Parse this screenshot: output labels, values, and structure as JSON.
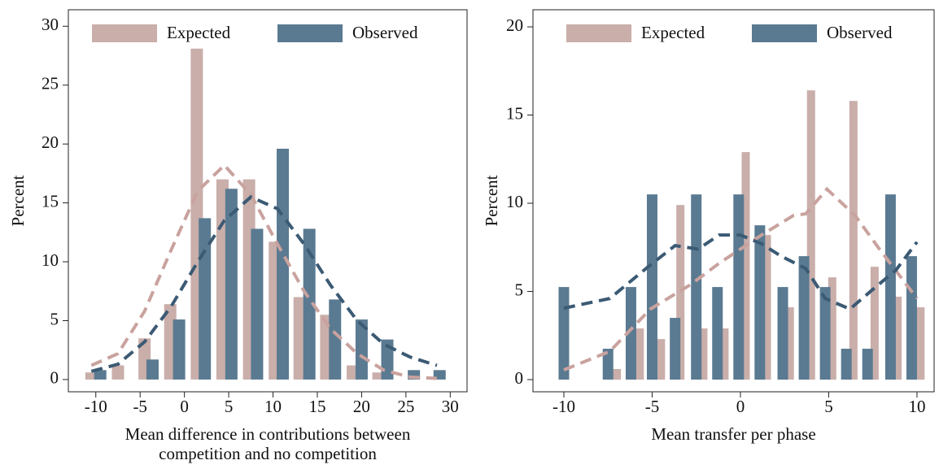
{
  "chart_data": [
    {
      "type": "bar",
      "ylabel": "Percent",
      "xlabel": [
        "Mean difference in contributions between",
        "competition and no competition"
      ],
      "xlim": [
        -13.1,
        31.9
      ],
      "ylim": [
        -1.04,
        31.4
      ],
      "xticks": [
        -10,
        -5,
        0,
        5,
        10,
        15,
        20,
        25,
        30
      ],
      "yticks": [
        0,
        5,
        10,
        15,
        20,
        25,
        30
      ],
      "series": [
        {
          "name": "Expected",
          "color": "#c9aeaa",
          "line_color": "#c9a29e",
          "x": [
            -10.5,
            -7.5,
            -4.5,
            -1.6,
            1.4,
            4.3,
            7.3,
            10.2,
            13.0,
            16.0,
            19.0,
            21.9
          ],
          "values": [
            0.6,
            1.2,
            3.5,
            6.4,
            28.1,
            17,
            17,
            11.7,
            7,
            5.5,
            1.2,
            0.6
          ],
          "curve_x": [
            -10.5,
            -7.5,
            -4.5,
            -1.5,
            1.5,
            4.5,
            7.5,
            10.5,
            13.5,
            16.5,
            19.5,
            22.5,
            25.5,
            28.5
          ],
          "curve_values": [
            1.2,
            2.2,
            5.8,
            11,
            16,
            18.2,
            15.7,
            11.5,
            7.5,
            4.3,
            2.2,
            0.8,
            0.2,
            0.1
          ]
        },
        {
          "name": "Observed",
          "color": "#5a7a91",
          "line_color": "#3b5a74",
          "x": [
            -9.5,
            -3.6,
            -0.6,
            2.3,
            5.3,
            8.2,
            11.1,
            14.1,
            17.0,
            20.0,
            22.9,
            25.9,
            28.8
          ],
          "values": [
            0.8,
            1.7,
            5.1,
            13.7,
            16.2,
            12.8,
            19.6,
            12.8,
            6.8,
            5.1,
            3.4,
            0.8,
            0.8
          ],
          "curve_x": [
            -10.5,
            -7.5,
            -4.5,
            -1.5,
            1.5,
            4.5,
            7.5,
            10.5,
            13.5,
            16.5,
            19.5,
            22.5,
            25.5,
            28.5
          ],
          "curve_values": [
            0.7,
            1.3,
            3.2,
            6.2,
            10,
            13.5,
            15.5,
            14.5,
            11.5,
            8,
            5,
            3,
            1.9,
            1.2
          ]
        }
      ]
    },
    {
      "type": "bar",
      "ylabel": "Percent",
      "xlabel": [
        "Mean transfer per phase"
      ],
      "xlim": [
        -11.75,
        10.97
      ],
      "ylim": [
        -0.69,
        20.97
      ],
      "xticks": [
        -10,
        -5,
        0,
        5,
        10
      ],
      "yticks": [
        0,
        5,
        10,
        15,
        20
      ],
      "series": [
        {
          "name": "Expected",
          "color": "#c9aeaa",
          "line_color": "#c9a29e",
          "x": [
            -7.0,
            -5.7,
            -4.5,
            -3.4,
            -2.1,
            -0.9,
            0.3,
            1.5,
            2.8,
            4.0,
            5.2,
            6.4,
            7.6,
            8.9,
            10.2
          ],
          "values": [
            0.6,
            2.9,
            2.3,
            9.9,
            2.9,
            2.9,
            12.9,
            8.2,
            4.1,
            16.4,
            5.8,
            15.8,
            6.4,
            4.7,
            4.1
          ],
          "curve_x": [
            -10,
            -7.4,
            -5.1,
            -2.8,
            -1.2,
            1.2,
            3.0,
            3.7,
            4.9,
            6.5,
            7.8,
            10
          ],
          "curve_values": [
            0.55,
            1.6,
            4,
            5.4,
            6.6,
            8.2,
            9.3,
            9.4,
            10.8,
            9.3,
            7.5,
            4.6
          ]
        },
        {
          "name": "Observed",
          "color": "#5a7a91",
          "line_color": "#3b5a74",
          "x": [
            -10,
            -7.5,
            -6.2,
            -5,
            -3.7,
            -2.5,
            -1.3,
            -0.1,
            1.1,
            2.4,
            3.6,
            4.8,
            6,
            7.2,
            8.5,
            9.7
          ],
          "values": [
            5.25,
            1.75,
            5.25,
            10.5,
            3.5,
            10.5,
            5.25,
            10.5,
            8.75,
            5.25,
            7,
            5.25,
            1.75,
            1.75,
            10.5,
            7
          ],
          "curve_x": [
            -10,
            -7.4,
            -5.1,
            -3.7,
            -2.4,
            -1.2,
            0,
            1.2,
            2.3,
            3.7,
            4.8,
            6.2,
            7.6,
            8.8,
            10
          ],
          "curve_values": [
            4.05,
            4.6,
            6.5,
            7.6,
            7.4,
            8.2,
            8.2,
            7.7,
            7,
            6.3,
            4.6,
            4,
            5.2,
            6.2,
            7.8
          ]
        }
      ]
    }
  ]
}
